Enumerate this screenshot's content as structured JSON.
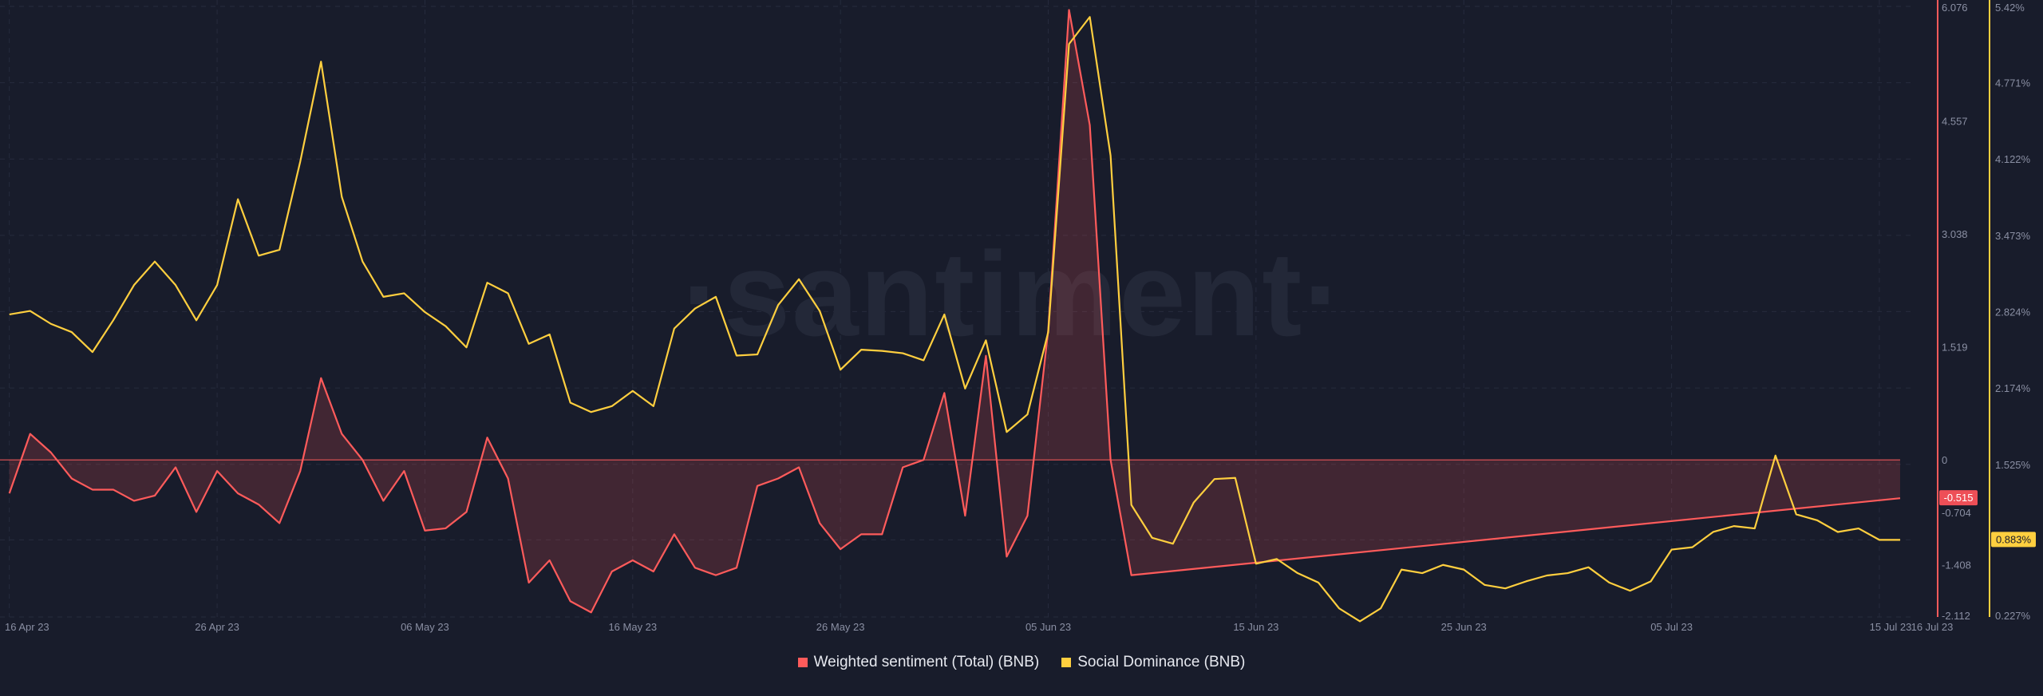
{
  "watermark": "·santiment·",
  "colors": {
    "background": "#181c2b",
    "sentiment": "#ff5b5b",
    "dominance": "#ffcf3f",
    "grid": "#262b3d"
  },
  "chart_data": {
    "type": "line",
    "x_labels": [
      "16 Apr 23",
      "26 Apr 23",
      "06 May 23",
      "16 May 23",
      "26 May 23",
      "05 Jun 23",
      "15 Jun 23",
      "25 Jun 23",
      "05 Jul 23",
      "15 Jul 23",
      "16 Jul 23"
    ],
    "x_label_days": [
      0,
      10,
      20,
      30,
      40,
      50,
      60,
      70,
      80,
      90,
      91
    ],
    "y_left": {
      "min": -2.112,
      "max": 6.076,
      "ticks": [
        "6.076",
        "4.557",
        "3.038",
        "1.519",
        "0",
        "-0.704",
        "-1.408",
        "-2.112"
      ],
      "tick_values": [
        6.076,
        4.557,
        3.038,
        1.519,
        0,
        -0.704,
        -1.408,
        -2.112
      ]
    },
    "y_right": {
      "min": 0.227,
      "max": 5.42,
      "ticks": [
        "5.42%",
        "4.771%",
        "4.122%",
        "3.473%",
        "2.824%",
        "2.174%",
        "1.525%",
        "0.883%",
        "0.227%"
      ],
      "tick_values": [
        5.42,
        4.771,
        4.122,
        3.473,
        2.824,
        2.174,
        1.525,
        0.883,
        0.227
      ]
    },
    "current_labels": {
      "sentiment": "-0.515",
      "dominance": "0.883%"
    },
    "series": [
      {
        "name": "Weighted sentiment (Total) (BNB)",
        "color": "#ff5b5b",
        "axis": "left",
        "x": [
          0,
          1,
          2,
          3,
          4,
          5,
          6,
          7,
          8,
          9,
          10,
          11,
          12,
          13,
          14,
          15,
          16,
          17,
          18,
          19,
          20,
          21,
          22,
          23,
          24,
          25,
          26,
          27,
          28,
          29,
          30,
          31,
          32,
          33,
          34,
          35,
          36,
          37,
          38,
          39,
          40,
          41,
          42,
          43,
          44,
          45,
          46,
          47,
          48,
          49,
          50,
          51,
          52,
          53,
          54,
          91
        ],
        "y": [
          -0.45,
          0.35,
          0.1,
          -0.25,
          -0.4,
          -0.4,
          -0.55,
          -0.48,
          -0.1,
          -0.7,
          -0.15,
          -0.45,
          -0.6,
          -0.85,
          -0.15,
          1.1,
          0.35,
          0.0,
          -0.55,
          -0.15,
          -0.95,
          -0.92,
          -0.7,
          0.3,
          -0.25,
          -1.65,
          -1.35,
          -1.9,
          -2.05,
          -1.5,
          -1.35,
          -1.5,
          -1.0,
          -1.45,
          -1.55,
          -1.45,
          -0.35,
          -0.25,
          -0.1,
          -0.85,
          -1.2,
          -1.0,
          -1.0,
          -0.1,
          0.0,
          0.9,
          -0.75,
          1.4,
          -1.3,
          -0.75,
          1.75,
          6.05,
          4.5,
          0.0,
          -1.55,
          -0.515
        ]
      },
      {
        "name": "Social Dominance (BNB)",
        "color": "#ffcf3f",
        "axis": "right",
        "x": [
          0,
          1,
          2,
          3,
          4,
          5,
          6,
          7,
          8,
          9,
          10,
          11,
          12,
          13,
          14,
          15,
          16,
          17,
          18,
          19,
          20,
          21,
          22,
          23,
          24,
          25,
          26,
          27,
          28,
          29,
          30,
          31,
          32,
          33,
          34,
          35,
          36,
          37,
          38,
          39,
          40,
          41,
          42,
          43,
          44,
          45,
          46,
          47,
          48,
          49,
          50,
          51,
          52,
          53,
          54,
          55,
          56,
          57,
          58,
          59,
          60,
          61,
          62,
          63,
          64,
          65,
          66,
          67,
          68,
          69,
          70,
          71,
          72,
          73,
          74,
          75,
          76,
          77,
          78,
          79,
          80,
          81,
          82,
          83,
          84,
          85,
          86,
          87,
          88,
          89,
          90,
          91
        ],
        "y": [
          2.8,
          2.83,
          2.72,
          2.65,
          2.48,
          2.75,
          3.05,
          3.25,
          3.05,
          2.75,
          3.05,
          3.78,
          3.3,
          3.35,
          4.1,
          4.95,
          3.8,
          3.25,
          2.95,
          2.98,
          2.82,
          2.7,
          2.52,
          3.07,
          2.98,
          2.55,
          2.63,
          2.05,
          1.97,
          2.02,
          2.15,
          2.02,
          2.68,
          2.85,
          2.95,
          2.45,
          2.46,
          2.88,
          3.1,
          2.83,
          2.33,
          2.5,
          2.49,
          2.47,
          2.41,
          2.8,
          2.17,
          2.58,
          1.8,
          1.95,
          2.65,
          5.1,
          5.33,
          4.15,
          1.18,
          0.9,
          0.85,
          1.2,
          1.4,
          1.41,
          0.68,
          0.72,
          0.6,
          0.52,
          0.3,
          0.19,
          0.3,
          0.63,
          0.6,
          0.67,
          0.63,
          0.5,
          0.47,
          0.53,
          0.58,
          0.6,
          0.65,
          0.52,
          0.45,
          0.53,
          0.8,
          0.82,
          0.95,
          1.0,
          0.98,
          1.6,
          1.1,
          1.05,
          0.95,
          0.98,
          0.883,
          0.883
        ]
      }
    ]
  }
}
